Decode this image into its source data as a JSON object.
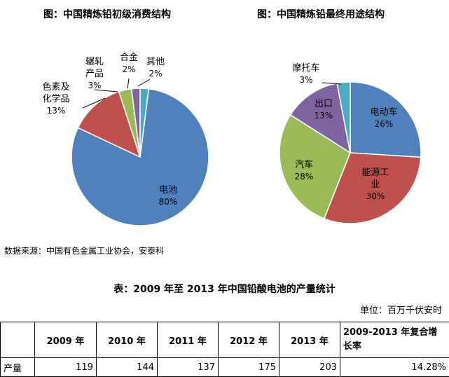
{
  "chart_data": [
    {
      "type": "pie",
      "title": "图：中国精炼铅初级消费结构",
      "start_offset_percent": 2,
      "slices": [
        {
          "label": "电池",
          "value": 80,
          "value_label": "80%",
          "color": "#4f81bd"
        },
        {
          "label": "色素及化学品",
          "value": 13,
          "value_label": "13%",
          "color": "#c0504d"
        },
        {
          "label": "辗轧产品",
          "value": 3,
          "value_label": "3%",
          "color": "#9bbb59"
        },
        {
          "label": "合金",
          "value": 2,
          "value_label": "2%",
          "color": "#8064a2"
        },
        {
          "label": "其他",
          "value": 2,
          "value_label": "2%",
          "color": "#4bacc6"
        }
      ]
    },
    {
      "type": "pie",
      "title": "图：中国精炼铅最终用途结构",
      "start_offset_percent": 0,
      "slices": [
        {
          "label": "电动车",
          "value": 26,
          "value_label": "26%",
          "color": "#4f81bd"
        },
        {
          "label": "能源工业",
          "value": 30,
          "value_label": "30%",
          "color": "#c0504d"
        },
        {
          "label": "汽车",
          "value": 28,
          "value_label": "28%",
          "color": "#9bbb59"
        },
        {
          "label": "出口",
          "value": 13,
          "value_label": "13%",
          "color": "#8064a2"
        },
        {
          "label": "摩托车",
          "value": 3,
          "value_label": "3%",
          "color": "#4bacc6"
        }
      ]
    }
  ],
  "source": "数据来源：中国有色金属工业协会，安泰科",
  "table": {
    "title": "表：2009 年至 2013 年中国铅酸电池的产量统计",
    "unit": "单位：百万千伏安时",
    "header": [
      "",
      "2009 年",
      "2010 年",
      "2011 年",
      "2012 年",
      "2013 年",
      "2009-2013 年复合增长率"
    ],
    "row_label": "产量",
    "values": [
      "119",
      "144",
      "137",
      "175",
      "203",
      "14.28%"
    ]
  }
}
